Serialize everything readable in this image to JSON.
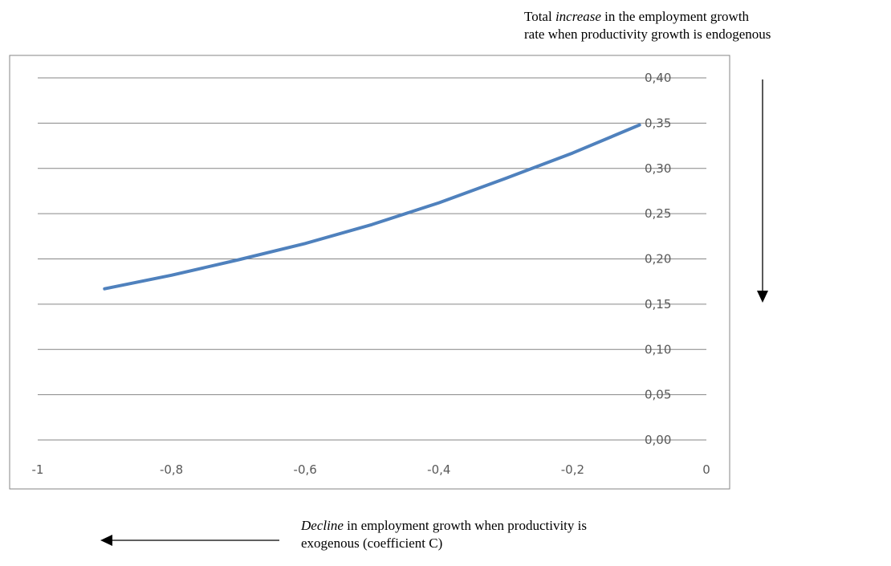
{
  "annotations": {
    "y_prefix": "Total ",
    "y_emph": "increase",
    "y_rest_line1": " in the employment growth",
    "y_line2": "rate when productivity growth is endogenous",
    "x_emph": "Decline",
    "x_rest_line1": " in employment growth when productivity is",
    "x_line2": "exogenous (coefficient C)"
  },
  "chart_data": {
    "type": "line",
    "title": "",
    "xlabel": "Decline in employment growth when productivity is exogenous (coefficient C)",
    "ylabel": "Total increase in the employment growth rate when productivity growth is endogenous",
    "xlim": [
      -1,
      0
    ],
    "ylim": [
      0,
      0.4
    ],
    "x_ticks": [
      "-1",
      "-0,8",
      "-0,6",
      "-0,4",
      "-0,2",
      "0"
    ],
    "y_ticks": [
      "0,00",
      "0,05",
      "0,10",
      "0,15",
      "0,20",
      "0,25",
      "0,30",
      "0,35",
      "0,40"
    ],
    "grid": true,
    "series": [
      {
        "color": "#4f81bd",
        "x": [
          -0.9,
          -0.8,
          -0.7,
          -0.6,
          -0.5,
          -0.4,
          -0.3,
          -0.2,
          -0.1
        ],
        "y": [
          0.167,
          0.182,
          0.199,
          0.217,
          0.238,
          0.262,
          0.289,
          0.317,
          0.348
        ]
      }
    ]
  }
}
